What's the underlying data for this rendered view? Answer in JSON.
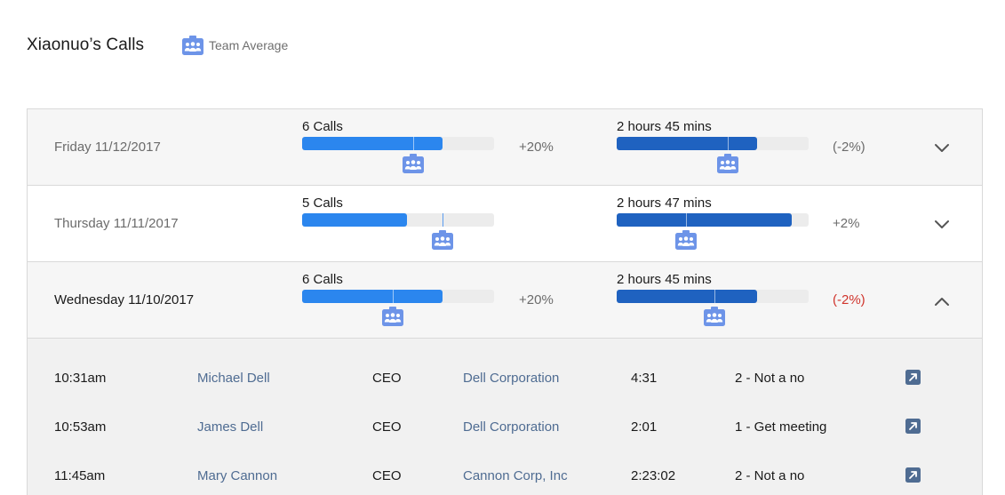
{
  "header": {
    "title": "Xiaonuo’s Calls",
    "legend_label": "Team Average"
  },
  "colors": {
    "calls_bar": "#2b86ee",
    "duration_bar": "#1f62c0",
    "negative": "#d0342c",
    "link": "#4f6c92",
    "team_icon": "#6d94e8"
  },
  "days": [
    {
      "label": "Friday 11/12/2017",
      "calls_label": "6 Calls",
      "calls_fraction": 0.73,
      "calls_avg_fraction": 0.58,
      "calls_delta": "+20%",
      "calls_delta_negative": false,
      "duration_label": "2 hours 45 mins",
      "duration_fraction": 0.73,
      "duration_avg_fraction": 0.58,
      "duration_delta": "(-2%)",
      "duration_delta_negative": false,
      "expanded": false,
      "toggle_icon": "chevron-down-icon"
    },
    {
      "label": "Thursday 11/11/2017",
      "calls_label": "5 Calls",
      "calls_fraction": 0.545,
      "calls_avg_fraction": 0.73,
      "calls_delta": "",
      "calls_delta_negative": false,
      "duration_label": "2 hours 47 mins",
      "duration_fraction": 0.91,
      "duration_avg_fraction": 0.36,
      "duration_delta": "+2%",
      "duration_delta_negative": false,
      "expanded": false,
      "toggle_icon": "chevron-down-icon"
    },
    {
      "label": "Wednesday 11/10/2017",
      "calls_label": "6 Calls",
      "calls_fraction": 0.73,
      "calls_avg_fraction": 0.47,
      "calls_delta": "+20%",
      "calls_delta_negative": false,
      "duration_label": "2 hours 45 mins",
      "duration_fraction": 0.73,
      "duration_avg_fraction": 0.51,
      "duration_delta": "(-2%)",
      "duration_delta_negative": true,
      "expanded": true,
      "toggle_icon": "chevron-up-icon"
    }
  ],
  "calls": [
    {
      "time": "10:31am",
      "name": "Michael Dell",
      "title": "CEO",
      "company": "Dell Corporation",
      "duration": "4:31",
      "outcome": "2 - Not a no",
      "action_icon": "open-external-icon"
    },
    {
      "time": "10:53am",
      "name": "James Dell",
      "title": "CEO",
      "company": "Dell Corporation",
      "duration": "2:01",
      "outcome": "1 - Get meeting",
      "action_icon": "open-external-icon"
    },
    {
      "time": "11:45am",
      "name": "Mary Cannon",
      "title": "CEO",
      "company": "Cannon Corp, Inc",
      "duration": "2:23:02",
      "outcome": "2 - Not a no",
      "action_icon": "open-external-icon"
    }
  ]
}
